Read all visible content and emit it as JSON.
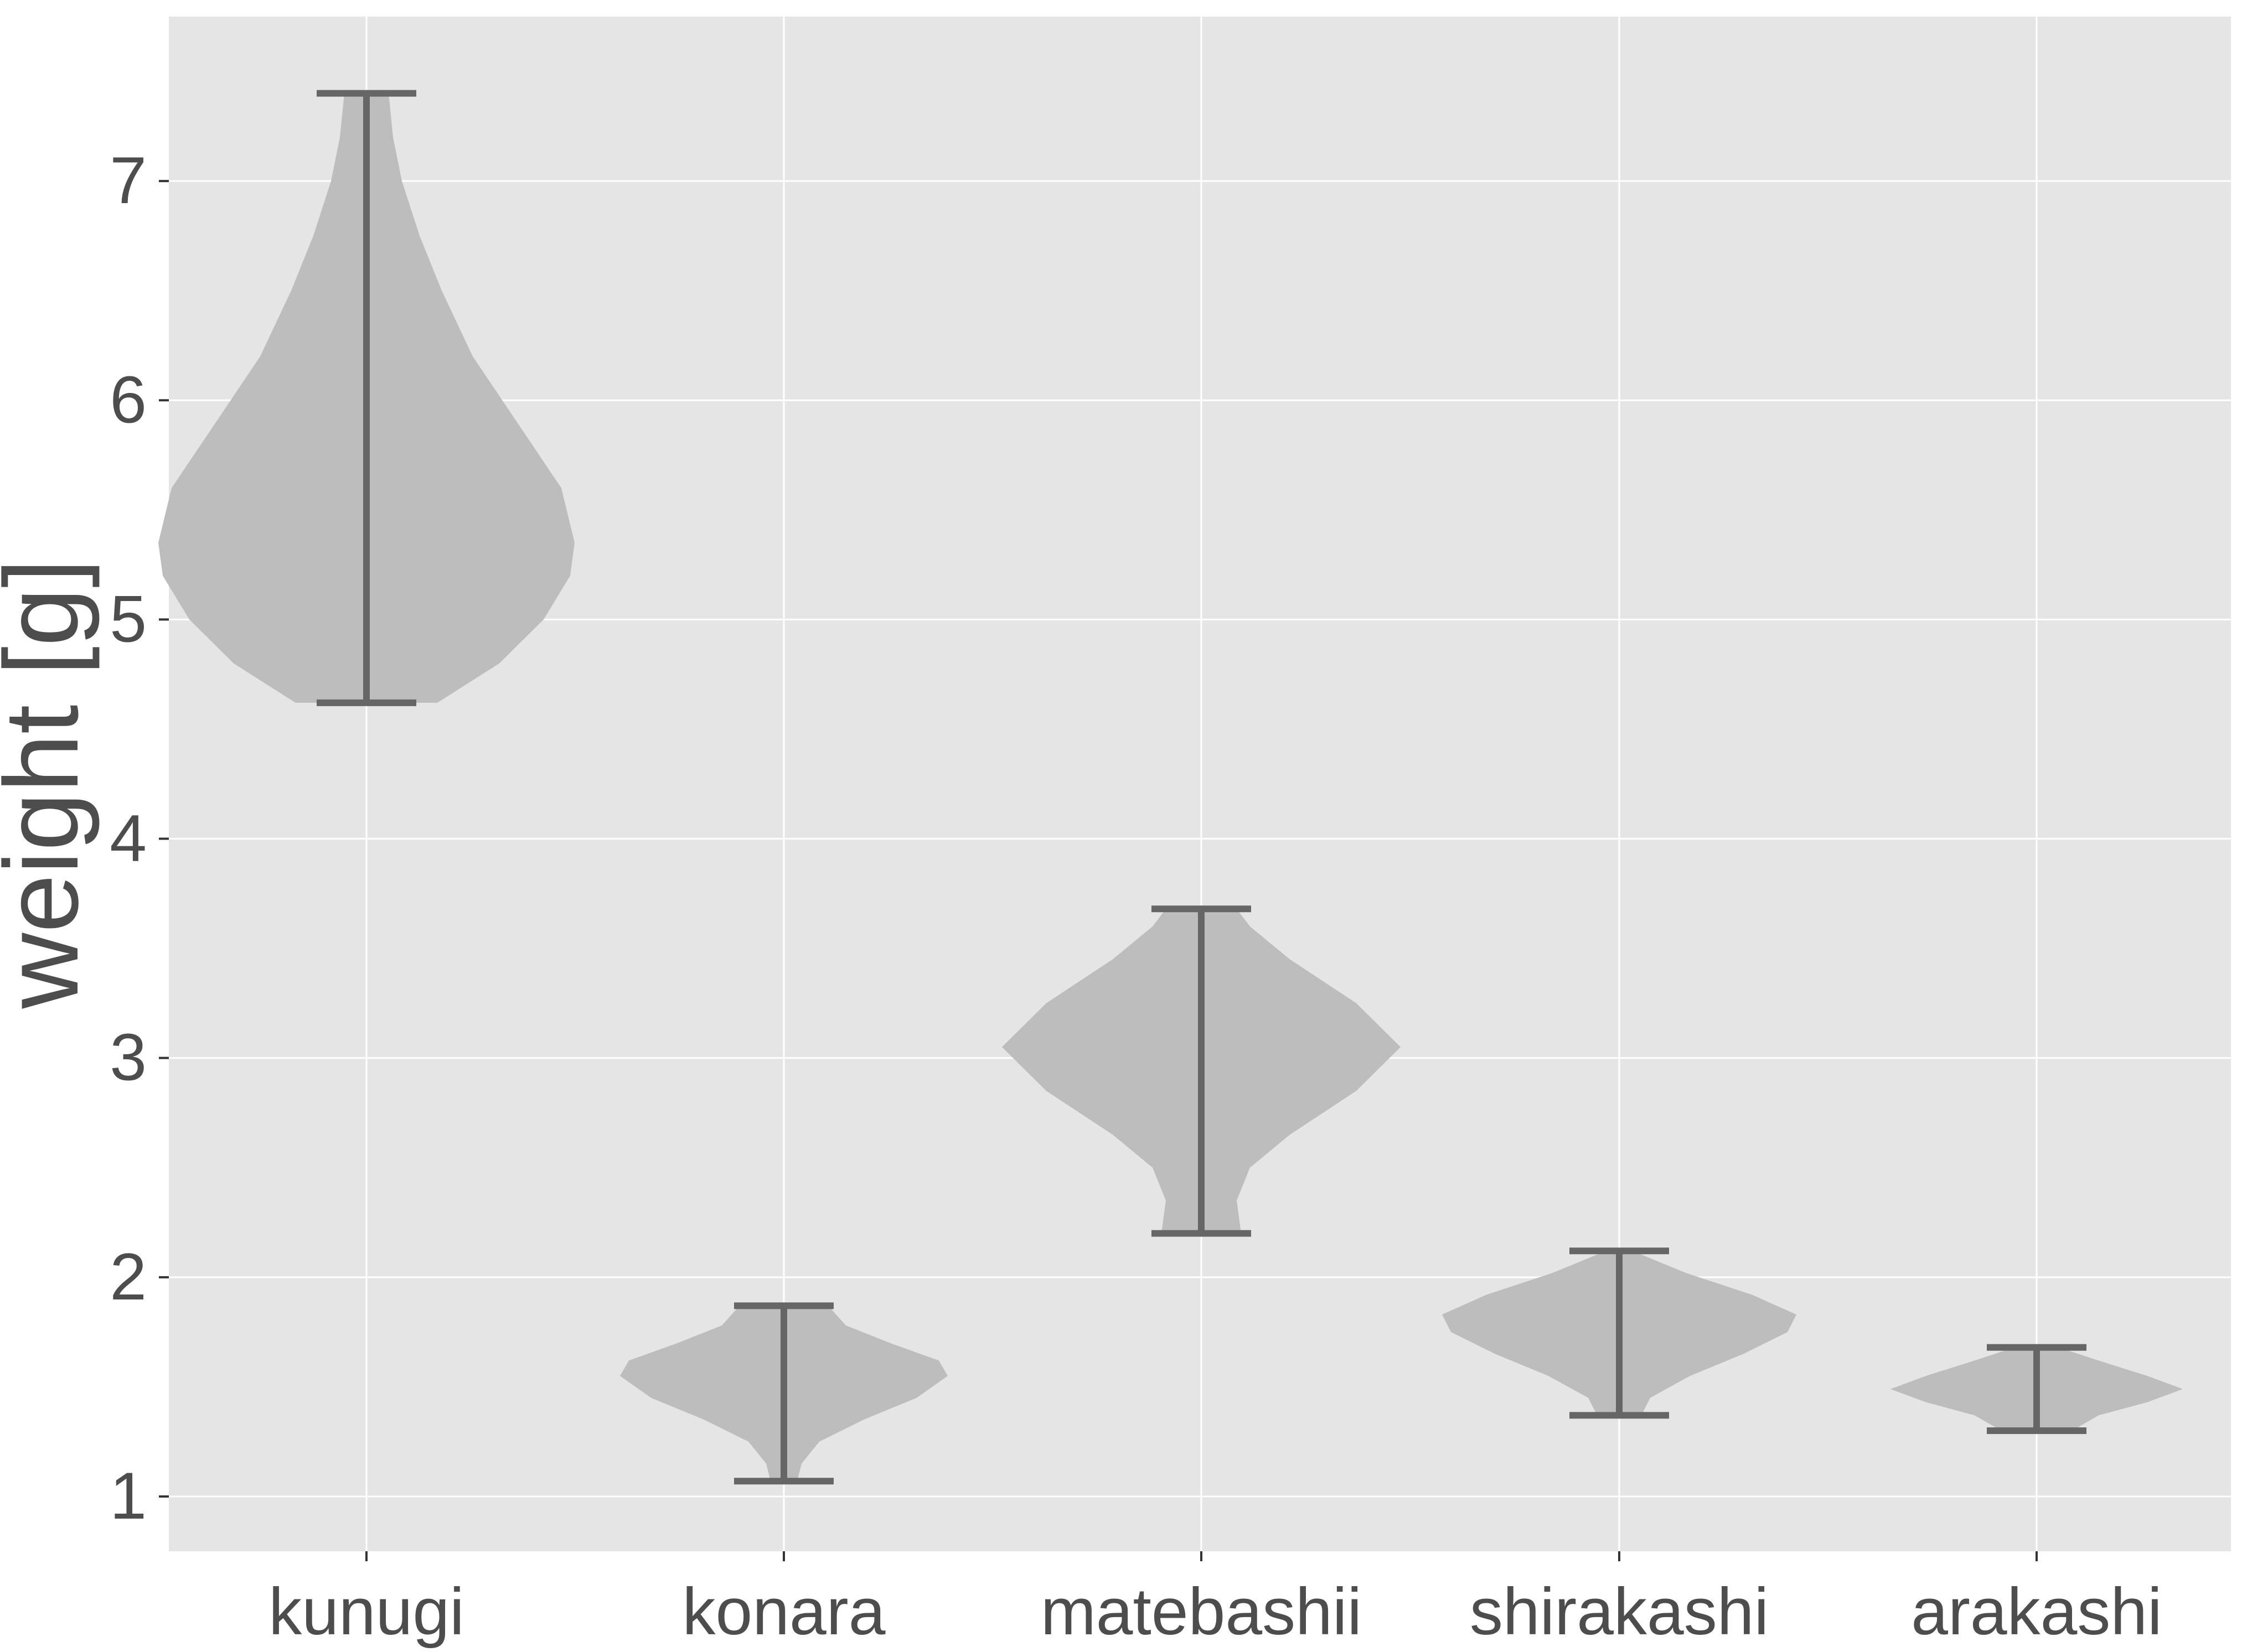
{
  "chart_data": {
    "type": "violin",
    "title": "",
    "xlabel": "",
    "ylabel": "weight [g]",
    "ylim": [
      0.75,
      7.75
    ],
    "y_ticks": [
      1,
      2,
      3,
      4,
      5,
      6,
      7
    ],
    "grid": true,
    "colors": {
      "panel": "#e5e5e5",
      "grid": "#ffffff",
      "violin_fill": "#bdbdbd",
      "whisker": "#666666",
      "text": "#4d4d4d"
    },
    "categories": [
      "kunugi",
      "konara",
      "matebashii",
      "shirakashi",
      "arakashi"
    ],
    "violins": [
      {
        "category": "kunugi",
        "min": 4.62,
        "max": 7.4,
        "profile": [
          [
            4.62,
            0.16
          ],
          [
            4.8,
            0.3
          ],
          [
            5.0,
            0.4
          ],
          [
            5.2,
            0.46
          ],
          [
            5.35,
            0.47
          ],
          [
            5.6,
            0.44
          ],
          [
            5.9,
            0.34
          ],
          [
            6.2,
            0.24
          ],
          [
            6.5,
            0.17
          ],
          [
            6.75,
            0.12
          ],
          [
            7.0,
            0.08
          ],
          [
            7.2,
            0.06
          ],
          [
            7.4,
            0.05
          ]
        ]
      },
      {
        "category": "konara",
        "min": 1.07,
        "max": 1.87,
        "profile": [
          [
            1.07,
            0.03
          ],
          [
            1.15,
            0.04
          ],
          [
            1.25,
            0.08
          ],
          [
            1.35,
            0.18
          ],
          [
            1.45,
            0.3
          ],
          [
            1.55,
            0.37
          ],
          [
            1.62,
            0.35
          ],
          [
            1.7,
            0.24
          ],
          [
            1.78,
            0.14
          ],
          [
            1.87,
            0.1
          ]
        ]
      },
      {
        "category": "matebashii",
        "min": 2.2,
        "max": 3.68,
        "profile": [
          [
            2.2,
            0.09
          ],
          [
            2.35,
            0.08
          ],
          [
            2.5,
            0.11
          ],
          [
            2.65,
            0.2
          ],
          [
            2.85,
            0.35
          ],
          [
            3.05,
            0.45
          ],
          [
            3.25,
            0.35
          ],
          [
            3.45,
            0.2
          ],
          [
            3.6,
            0.11
          ],
          [
            3.68,
            0.08
          ]
        ]
      },
      {
        "category": "shirakashi",
        "min": 1.37,
        "max": 2.12,
        "profile": [
          [
            1.37,
            0.05
          ],
          [
            1.45,
            0.07
          ],
          [
            1.55,
            0.16
          ],
          [
            1.65,
            0.28
          ],
          [
            1.75,
            0.38
          ],
          [
            1.83,
            0.4
          ],
          [
            1.92,
            0.3
          ],
          [
            2.02,
            0.15
          ],
          [
            2.12,
            0.03
          ]
        ]
      },
      {
        "category": "arakashi",
        "min": 1.3,
        "max": 1.68,
        "profile": [
          [
            1.3,
            0.08
          ],
          [
            1.37,
            0.14
          ],
          [
            1.43,
            0.25
          ],
          [
            1.49,
            0.33
          ],
          [
            1.55,
            0.25
          ],
          [
            1.62,
            0.14
          ],
          [
            1.68,
            0.05
          ]
        ]
      }
    ]
  }
}
